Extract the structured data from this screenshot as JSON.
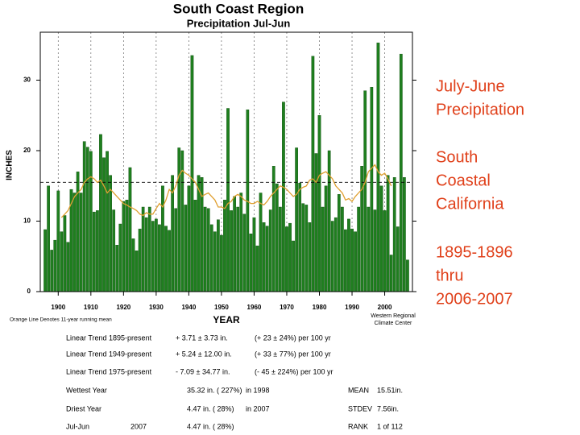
{
  "chart_data": {
    "type": "bar",
    "title": "South Coast Region",
    "subtitle": "Precipitation  Jul-Jun",
    "y_label": "INCHES",
    "x_label": "YEAR",
    "note_left": "Orange Line Denotes 11-year running mean",
    "note_right": [
      "Western Regional",
      "Climate Center"
    ],
    "x": [
      1896,
      1897,
      1898,
      1899,
      1900,
      1901,
      1902,
      1903,
      1904,
      1905,
      1906,
      1907,
      1908,
      1909,
      1910,
      1911,
      1912,
      1913,
      1914,
      1915,
      1916,
      1917,
      1918,
      1919,
      1920,
      1921,
      1922,
      1923,
      1924,
      1925,
      1926,
      1927,
      1928,
      1929,
      1930,
      1931,
      1932,
      1933,
      1934,
      1935,
      1936,
      1937,
      1938,
      1939,
      1940,
      1941,
      1942,
      1943,
      1944,
      1945,
      1946,
      1947,
      1948,
      1949,
      1950,
      1951,
      1952,
      1953,
      1954,
      1955,
      1956,
      1957,
      1958,
      1959,
      1960,
      1961,
      1962,
      1963,
      1964,
      1965,
      1966,
      1967,
      1968,
      1969,
      1970,
      1971,
      1972,
      1973,
      1974,
      1975,
      1976,
      1977,
      1978,
      1979,
      1980,
      1981,
      1982,
      1983,
      1984,
      1985,
      1986,
      1987,
      1988,
      1989,
      1990,
      1991,
      1992,
      1993,
      1994,
      1995,
      1996,
      1997,
      1998,
      1999,
      2000,
      2001,
      2002,
      2003,
      2004,
      2005,
      2006,
      2007
    ],
    "values": [
      8.8,
      15.0,
      5.9,
      7.3,
      14.3,
      8.5,
      10.8,
      7.0,
      14.5,
      14.0,
      17.0,
      14.0,
      21.3,
      20.5,
      19.9,
      11.3,
      11.5,
      22.3,
      19.0,
      19.9,
      16.5,
      11.6,
      6.6,
      9.6,
      12.8,
      13.0,
      17.6,
      7.5,
      5.8,
      8.9,
      12.0,
      10.5,
      12.0,
      10.0,
      10.3,
      9.5,
      15.0,
      9.3,
      8.7,
      16.5,
      11.8,
      20.4,
      20.0,
      12.3,
      15.0,
      33.5,
      13.0,
      16.5,
      16.2,
      12.0,
      11.8,
      9.5,
      8.5,
      10.2,
      8.0,
      13.0,
      26.0,
      11.5,
      13.5,
      12.0,
      14.0,
      11.0,
      25.8,
      8.2,
      10.5,
      6.5,
      14.0,
      9.8,
      9.3,
      11.6,
      17.8,
      15.3,
      12.0,
      26.9,
      9.2,
      9.7,
      7.2,
      20.4,
      15.4,
      12.5,
      12.3,
      9.8,
      33.4,
      19.6,
      25.0,
      12.0,
      15.0,
      20.0,
      10.0,
      10.5,
      13.8,
      12.0,
      8.8,
      10.3,
      8.9,
      8.5,
      12.0,
      17.8,
      28.5,
      12.0,
      29.0,
      11.6,
      35.3,
      15.0,
      11.5,
      16.5,
      5.2,
      16.2,
      9.2,
      33.7,
      16.2,
      4.5
    ],
    "color": "#1f7f1f",
    "line": {
      "color": "#e0a030",
      "values": [
        null,
        null,
        null,
        null,
        null,
        10.5,
        11.0,
        11.5,
        12.5,
        13.5,
        14.0,
        14.5,
        15.5,
        16.0,
        16.3,
        16.0,
        15.5,
        15.8,
        15.0,
        14.0,
        14.5,
        14.0,
        13.5,
        13.0,
        12.5,
        12.3,
        12.0,
        11.8,
        11.5,
        11.0,
        10.8,
        11.2,
        11.0,
        11.0,
        11.8,
        12.5,
        12.0,
        13.0,
        14.5,
        14.0,
        15.0,
        16.5,
        17.2,
        16.8,
        16.5,
        16.0,
        15.5,
        14.5,
        13.5,
        13.8,
        14.0,
        13.5,
        13.0,
        12.0,
        12.0,
        11.8,
        12.5,
        12.8,
        13.5,
        13.8,
        13.5,
        13.0,
        12.8,
        12.5,
        12.5,
        12.8,
        12.5,
        12.3,
        12.8,
        13.5,
        14.0,
        14.5,
        15.0,
        14.8,
        14.5,
        14.0,
        13.5,
        13.8,
        14.5,
        14.8,
        15.0,
        15.8,
        16.0,
        15.5,
        16.5,
        16.8,
        17.0,
        16.5,
        16.0,
        15.0,
        14.5,
        14.0,
        13.0,
        13.2,
        12.8,
        13.5,
        14.0,
        14.5,
        15.5,
        17.0,
        17.5,
        18.0,
        17.0,
        16.5,
        16.8,
        16.0,
        15.0,
        null,
        null,
        null,
        null,
        null
      ]
    },
    "mean_line": 15.51,
    "xlim": [
      1894.5,
      2008.5
    ],
    "xticks": [
      1900,
      1910,
      1920,
      1930,
      1940,
      1950,
      1960,
      1970,
      1980,
      1990,
      2000
    ],
    "ylim": [
      0,
      36.8
    ],
    "yticks": [
      0,
      10,
      20,
      30
    ],
    "grid": true
  },
  "side_text": [
    [
      "July-June",
      "Precipitation"
    ],
    [
      "South",
      "Coastal",
      "California"
    ],
    [
      "1895-1896",
      "thru",
      "2006-2007"
    ]
  ],
  "stats": [
    [
      "Linear Trend 1895-present",
      "+ 3.71 ± 3.73 in.",
      "(+ 23 ± 24%) per 100 yr"
    ],
    [
      "Linear Trend 1949-present",
      "+ 5.24 ± 12.00 in.",
      "(+ 33 ± 77%) per 100 yr"
    ],
    [
      "Linear Trend 1975-present",
      "- 7.09 ± 34.77 in.",
      "(- 45 ± 224%) per 100 yr"
    ],
    [
      "Wettest Year",
      "35.32 in. ( 227%)",
      "in 1998",
      "MEAN",
      "15.51in."
    ],
    [
      "Driest Year",
      "4.47 in. ( 28%)",
      "in 2007",
      "STDEV",
      "7.56in."
    ],
    [
      "Jul-Jun",
      "2007",
      "4.47 in. ( 28%)",
      "RANK",
      "1 of 112"
    ]
  ]
}
